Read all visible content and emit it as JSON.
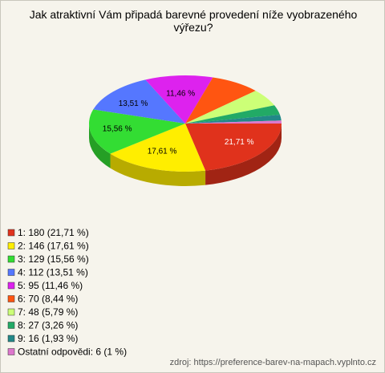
{
  "chart_data": {
    "type": "pie",
    "title": "Jak atraktivní Vám připadá barevné provedení níže vyobrazeného výřezu?",
    "categories": [
      "1: 180 (21,71 %)",
      "2: 146 (17,61 %)",
      "3: 129 (15,56 %)",
      "4: 112 (13,51 %)",
      "5: 95 (11,46 %)",
      "6: 70 (8,44 %)",
      "7: 48 (5,79 %)",
      "8: 27 (3,26 %)",
      "9: 16 (1,93 %)",
      "Ostatní odpovědi: 6 (1 %)"
    ],
    "values": [
      21.71,
      17.61,
      15.56,
      13.51,
      11.46,
      8.44,
      5.79,
      3.26,
      1.93,
      1
    ],
    "value_labels": [
      "21,71 %",
      "17,61 %",
      "15,56 %",
      "13,51 %",
      "11,46 %",
      null,
      null,
      null,
      null,
      null
    ],
    "colors": [
      "#e0321c",
      "#ffee00",
      "#33dd33",
      "#5577ff",
      "#dd22ee",
      "#ff5511",
      "#ccff77",
      "#22aa66",
      "#228888",
      "#dd77cc"
    ],
    "source": "zdroj: https://preference-barev-na-mapach.vyplnto.cz"
  }
}
